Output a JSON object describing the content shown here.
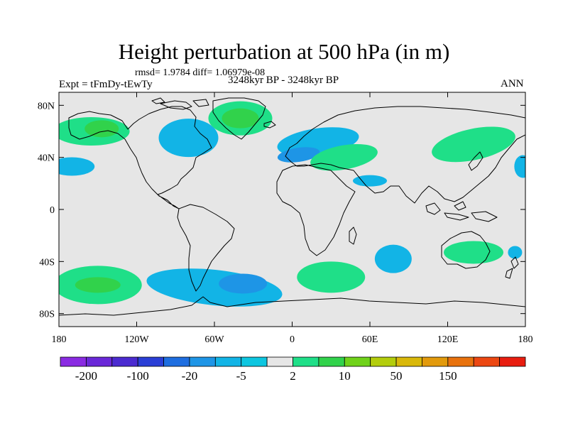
{
  "title": "Height perturbation at 500 hPa (in m)",
  "stats": "rmsd= 1.9784 diff= 1.06979e-08",
  "experiment": "Expt = tFmDy-tEwTy",
  "period": "3248kyr BP - 3248kyr BP",
  "season": "ANN",
  "map": {
    "lon_range": [
      -180,
      180
    ],
    "lat_range": [
      -90,
      90
    ],
    "background_color": "#e6e6e6",
    "x_ticks": [
      {
        "lon": -180,
        "label": "180"
      },
      {
        "lon": -120,
        "label": "120W"
      },
      {
        "lon": -60,
        "label": "60W"
      },
      {
        "lon": 0,
        "label": "0"
      },
      {
        "lon": 60,
        "label": "60E"
      },
      {
        "lon": 120,
        "label": "120E"
      },
      {
        "lon": 180,
        "label": "180"
      }
    ],
    "y_ticks": [
      {
        "lat": 80,
        "label": "80N"
      },
      {
        "lat": 40,
        "label": "40N"
      },
      {
        "lat": 0,
        "label": "0"
      },
      {
        "lat": -40,
        "label": "40S"
      },
      {
        "lat": -80,
        "label": "80S"
      }
    ]
  },
  "colorbar": {
    "colors": [
      "#8a2be2",
      "#6a28d8",
      "#4b2bd0",
      "#2a3fd6",
      "#1e6ee0",
      "#1e95e6",
      "#12b4e6",
      "#0dc6e0",
      "#e6e6e6",
      "#1fdf88",
      "#31d24b",
      "#70d21a",
      "#b3cd0c",
      "#d9b80a",
      "#e29a0c",
      "#e8720d",
      "#ec4712",
      "#e81d10"
    ],
    "labels": [
      "-200",
      "-100",
      "-20",
      "-5",
      "2",
      "10",
      "50",
      "150"
    ]
  },
  "chart_data": {
    "type": "filled contour map",
    "title": "Height perturbation at 500 hPa (in m)",
    "units": "m",
    "levels": [
      -200,
      -100,
      -20,
      -5,
      2,
      10,
      50,
      150
    ],
    "features": [
      {
        "sign": "positive",
        "center_lon": -155,
        "center_lat": 60,
        "color": "#1fdf88"
      },
      {
        "sign": "positive",
        "center_lon": -147,
        "center_lat": 62,
        "color": "#31d24b"
      },
      {
        "sign": "negative",
        "center_lon": -170,
        "center_lat": 33,
        "color": "#12b4e6"
      },
      {
        "sign": "negative",
        "center_lon": -80,
        "center_lat": 55,
        "color": "#12b4e6"
      },
      {
        "sign": "positive",
        "center_lon": -40,
        "center_lat": 70,
        "color": "#1fdf88"
      },
      {
        "sign": "positive",
        "center_lon": -40,
        "center_lat": 70,
        "color": "#31d24b"
      },
      {
        "sign": "negative",
        "center_lon": 20,
        "center_lat": 52,
        "color": "#12b4e6"
      },
      {
        "sign": "negative",
        "center_lon": 5,
        "center_lat": 42,
        "color": "#1e95e6"
      },
      {
        "sign": "positive",
        "center_lon": 40,
        "center_lat": 40,
        "color": "#1fdf88"
      },
      {
        "sign": "negative",
        "center_lon": 60,
        "center_lat": 22,
        "color": "#12b4e6"
      },
      {
        "sign": "positive",
        "center_lon": 140,
        "center_lat": 50,
        "color": "#1fdf88"
      },
      {
        "sign": "negative",
        "center_lon": 178,
        "center_lat": 33,
        "color": "#12b4e6"
      },
      {
        "sign": "negative",
        "center_lon": -60,
        "center_lat": -60,
        "color": "#12b4e6"
      },
      {
        "sign": "negative",
        "center_lon": -38,
        "center_lat": -57,
        "color": "#1e95e6"
      },
      {
        "sign": "positive",
        "center_lon": 30,
        "center_lat": -52,
        "color": "#1fdf88"
      },
      {
        "sign": "negative",
        "center_lon": 78,
        "center_lat": -38,
        "color": "#12b4e6"
      },
      {
        "sign": "positive",
        "center_lon": 140,
        "center_lat": -33,
        "color": "#1fdf88"
      },
      {
        "sign": "positive",
        "center_lon": -150,
        "center_lat": -58,
        "color": "#1fdf88"
      },
      {
        "sign": "positive",
        "center_lon": -150,
        "center_lat": -58,
        "color": "#31d24b"
      },
      {
        "sign": "negative",
        "center_lon": 172,
        "center_lat": -33,
        "color": "#12b4e6"
      }
    ]
  }
}
